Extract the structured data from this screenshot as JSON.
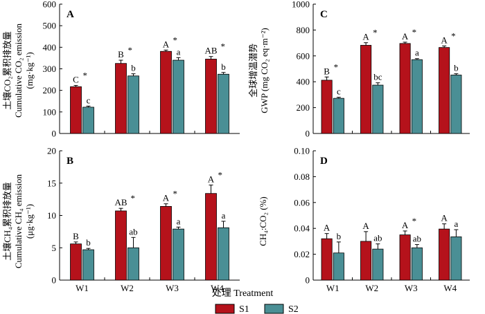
{
  "x_axis_label": "处理 Treatment",
  "legend": [
    {
      "name": "S1",
      "color": "#b5121b"
    },
    {
      "name": "S2",
      "color": "#4a8f95"
    }
  ],
  "chart_data": [
    {
      "panel": "A",
      "type": "bar",
      "categories": [
        "W1",
        "W2",
        "W3",
        "W4"
      ],
      "ylabel_cn": "土壤CO₂累积排放量",
      "ylabel_en": "Cumulative CO₂ emission",
      "yunit": "(mg·kg⁻¹)",
      "ylim": [
        0,
        600
      ],
      "yticks": [
        "0",
        "100",
        "200",
        "300",
        "400",
        "500",
        "600"
      ],
      "series": [
        {
          "name": "S1",
          "values": [
            217,
            325,
            381,
            345
          ],
          "errors": [
            6,
            15,
            6,
            12
          ],
          "letters": [
            "C",
            "B",
            "A",
            "AB"
          ],
          "star": [
            true,
            true,
            true,
            true
          ]
        },
        {
          "name": "S2",
          "values": [
            122,
            267,
            340,
            275
          ],
          "errors": [
            5,
            10,
            12,
            8
          ],
          "letters": [
            "c",
            "b",
            "a",
            "b"
          ],
          "star": [
            false,
            false,
            false,
            false
          ]
        }
      ]
    },
    {
      "panel": "B",
      "type": "bar",
      "categories": [
        "W1",
        "W2",
        "W3",
        "W4"
      ],
      "ylabel_cn": "土壤CH₄累积排放量",
      "ylabel_en": "Cumulative CH₄ emission",
      "yunit": "(μg·kg⁻¹)",
      "ylim": [
        0,
        20
      ],
      "yticks": [
        "0",
        "5",
        "10",
        "15",
        "20"
      ],
      "series": [
        {
          "name": "S1",
          "values": [
            5.6,
            10.7,
            11.4,
            13.4
          ],
          "errors": [
            0.3,
            0.4,
            0.4,
            1.3
          ],
          "letters": [
            "B",
            "AB",
            "A",
            "A"
          ],
          "star": [
            false,
            true,
            true,
            true
          ]
        },
        {
          "name": "S2",
          "values": [
            4.7,
            5.0,
            7.9,
            8.1
          ],
          "errors": [
            0.2,
            1.6,
            0.3,
            1.0
          ],
          "letters": [
            "b",
            "ab",
            "a",
            "a"
          ],
          "star": [
            false,
            false,
            false,
            false
          ]
        }
      ]
    },
    {
      "panel": "C",
      "type": "bar",
      "categories": [
        "W1",
        "W2",
        "W3",
        "W4"
      ],
      "ylabel_cn": "全球增温潜势",
      "ylabel_en": "GWP (mg CO₂ eq·m⁻²)",
      "yunit": "",
      "ylim": [
        0,
        1000
      ],
      "yticks": [
        "0",
        "200",
        "400",
        "600",
        "800",
        "1000"
      ],
      "series": [
        {
          "name": "S1",
          "values": [
            412,
            682,
            696,
            665
          ],
          "errors": [
            25,
            20,
            10,
            12
          ],
          "letters": [
            "B",
            "A",
            "A",
            "A"
          ],
          "star": [
            true,
            true,
            true,
            true
          ]
        },
        {
          "name": "S2",
          "values": [
            272,
            374,
            571,
            452
          ],
          "errors": [
            8,
            18,
            8,
            10
          ],
          "letters": [
            "c",
            "bc",
            "a",
            "b"
          ],
          "star": [
            false,
            false,
            false,
            false
          ]
        }
      ]
    },
    {
      "panel": "D",
      "type": "bar",
      "categories": [
        "W1",
        "W2",
        "W3",
        "W4"
      ],
      "ylabel_cn": "",
      "ylabel_en": "CH₄:CO₂ (%)",
      "yunit": "",
      "ylim": [
        0,
        0.1
      ],
      "yticks": [
        "0",
        "0.02",
        "0.04",
        "0.06",
        "0.08",
        "0.10"
      ],
      "series": [
        {
          "name": "S1",
          "values": [
            0.032,
            0.03,
            0.035,
            0.0395
          ],
          "errors": [
            0.004,
            0.0075,
            0.003,
            0.004
          ],
          "letters": [
            "A",
            "A",
            "A",
            "A"
          ],
          "star": [
            false,
            false,
            true,
            false
          ]
        },
        {
          "name": "S2",
          "values": [
            0.021,
            0.024,
            0.025,
            0.0335
          ],
          "errors": [
            0.0085,
            0.004,
            0.0025,
            0.0055
          ],
          "letters": [
            "b",
            "ab",
            "ab",
            "a"
          ],
          "star": [
            false,
            false,
            false,
            false
          ]
        }
      ]
    }
  ]
}
